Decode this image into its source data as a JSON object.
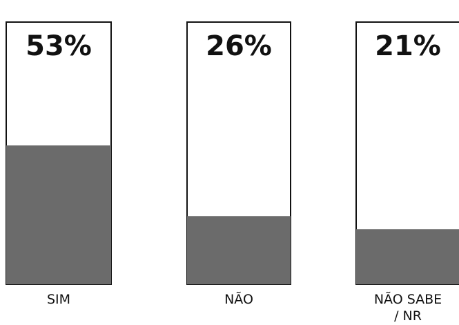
{
  "chart_data": {
    "type": "bar",
    "categories": [
      "SIM",
      "NÃO",
      "NÃO SABE / NR"
    ],
    "category_lines": [
      [
        "SIM"
      ],
      [
        "NÃO"
      ],
      [
        "NÃO SABE",
        "/ NR"
      ]
    ],
    "values": [
      53,
      26,
      21
    ],
    "value_labels": [
      "53%",
      "26%",
      "21%"
    ],
    "unit": "%",
    "title": "",
    "xlabel": "",
    "ylabel": "",
    "ylim": [
      0,
      100
    ],
    "grid": false,
    "legend": "none",
    "colors": {
      "fill": "#6b6b6b",
      "frame": "#111111",
      "background": "#ffffff"
    }
  }
}
